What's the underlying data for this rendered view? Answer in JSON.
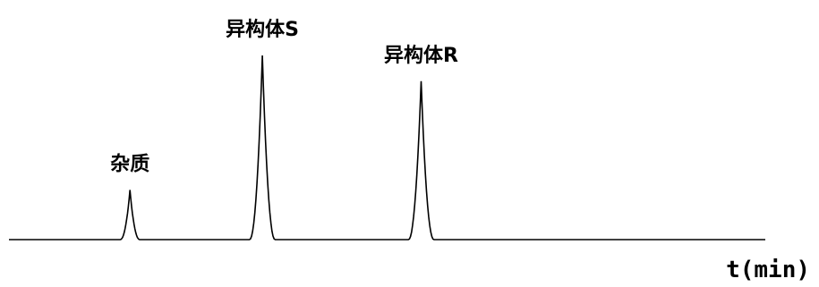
{
  "chart_data": {
    "type": "line",
    "title": "",
    "xlabel": "t(min)",
    "ylabel": "",
    "grid": false,
    "legend": "none",
    "x_range": [
      0,
      10
    ],
    "y_range": [
      0,
      1
    ],
    "peaks": [
      {
        "label": "杂质",
        "time": 1.6,
        "height": 0.27,
        "width": 0.13
      },
      {
        "label": "异构体S",
        "time": 3.35,
        "height": 1.0,
        "width": 0.17
      },
      {
        "label": "异构体R",
        "time": 5.45,
        "height": 0.86,
        "width": 0.17
      }
    ]
  },
  "colors": {
    "trace": "#000000",
    "background": "#ffffff"
  }
}
